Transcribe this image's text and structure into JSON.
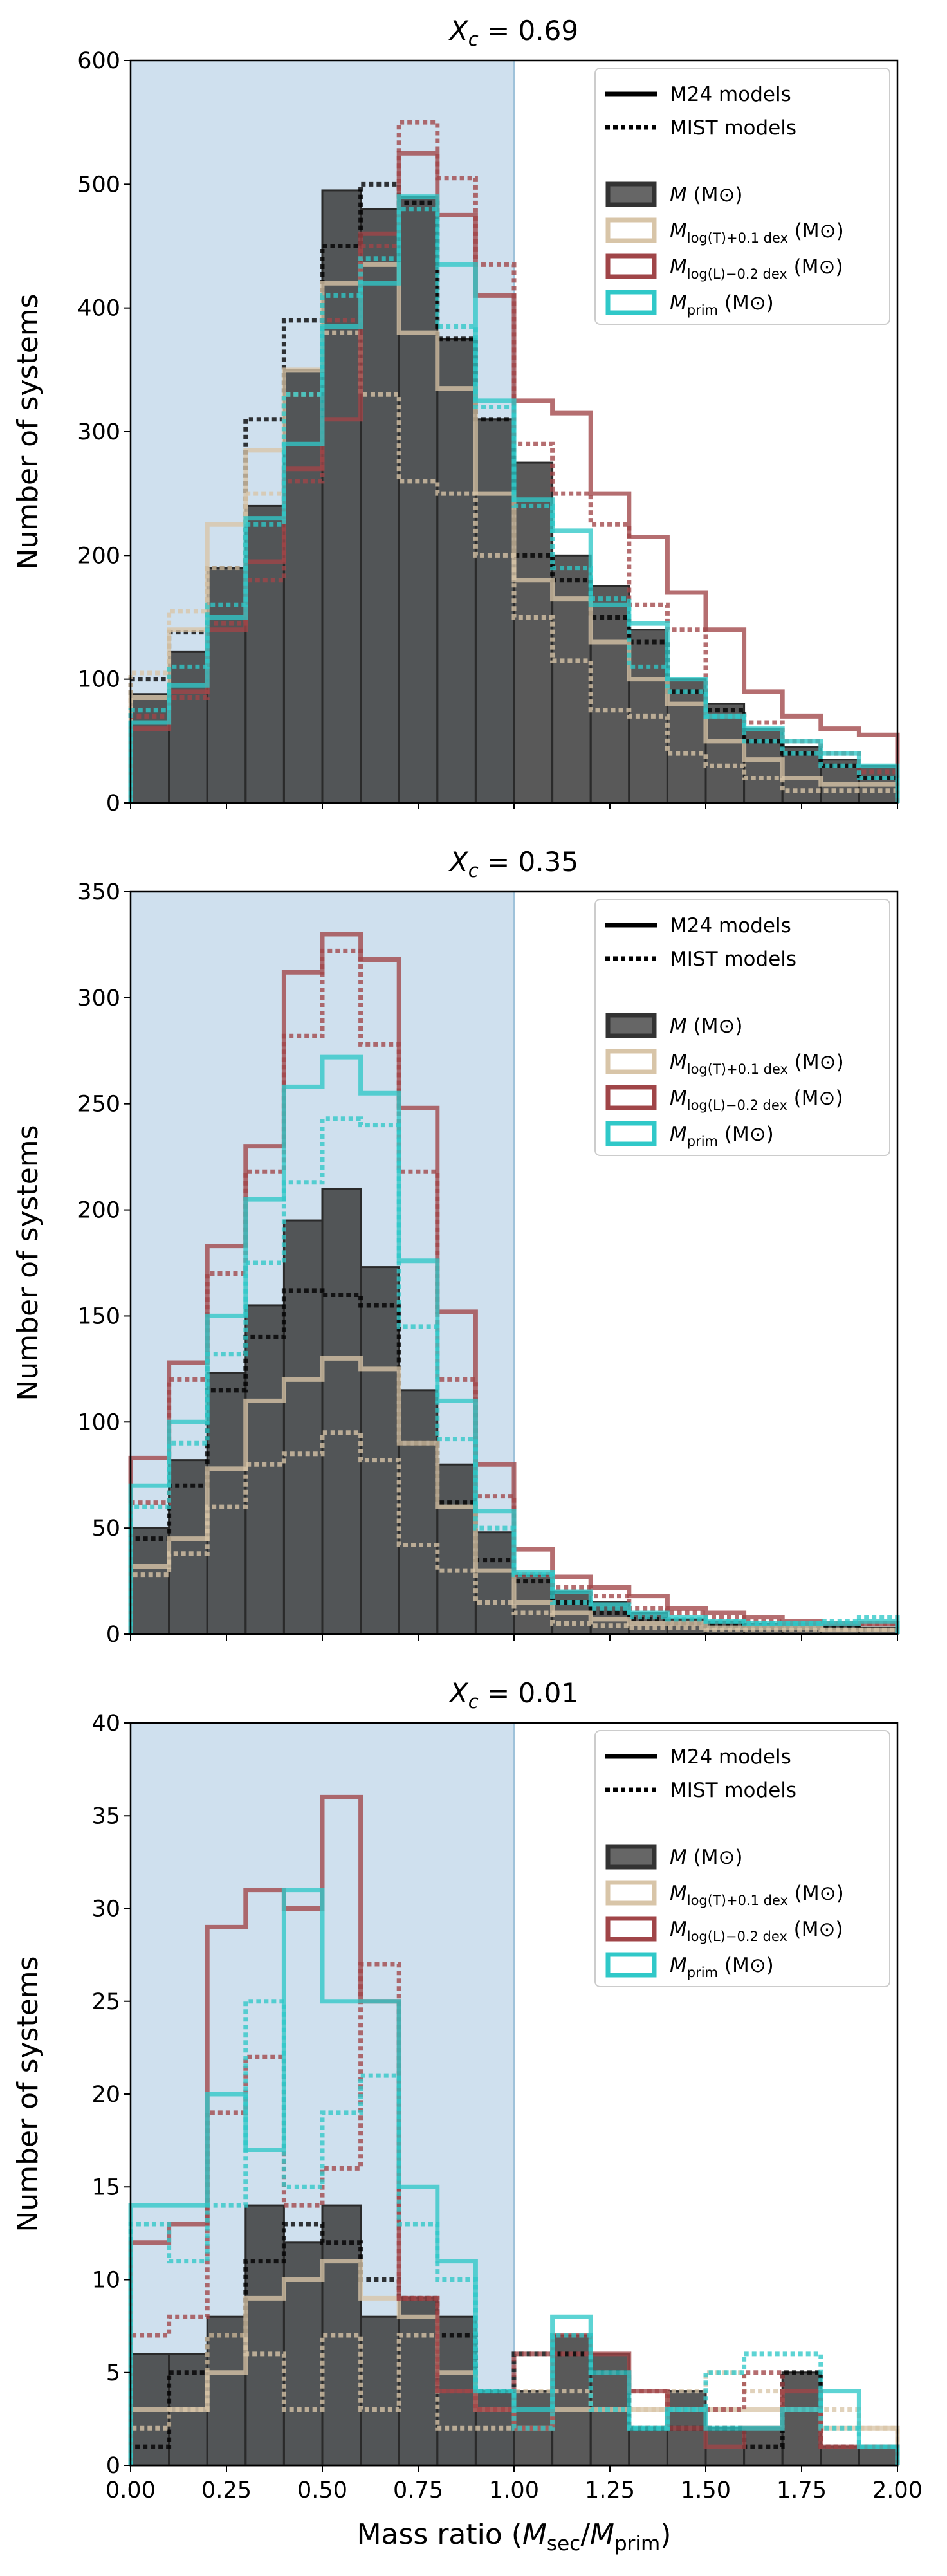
{
  "chart_data": [
    {
      "type": "histogram",
      "title_prefix": "X",
      "title_sub": "c",
      "title_value": " = 0.69",
      "ylabel": "Number of systems",
      "xlabel": "",
      "xlim": [
        0,
        2
      ],
      "ylim": [
        0,
        600
      ],
      "yticks": [
        "0",
        "100",
        "200",
        "300",
        "400",
        "500",
        "600"
      ],
      "xticks": [],
      "shaded_region": [
        0,
        1
      ],
      "bin_edges": [
        0,
        0.1,
        0.2,
        0.3,
        0.4,
        0.5,
        0.6,
        0.7,
        0.8,
        0.9,
        1.0,
        1.1,
        1.2,
        1.3,
        1.4,
        1.5,
        1.6,
        1.7,
        1.8,
        1.9,
        2.0
      ],
      "series": [
        {
          "name": "M24 M",
          "color": "#3a3a3a",
          "style": "filled",
          "values": [
            88,
            122,
            190,
            240,
            350,
            495,
            480,
            490,
            375,
            310,
            275,
            200,
            175,
            140,
            100,
            80,
            60,
            45,
            35,
            30
          ]
        },
        {
          "name": "MIST M",
          "color": "#000000",
          "style": "dotted",
          "values": [
            100,
            138,
            190,
            310,
            390,
            450,
            500,
            485,
            375,
            310,
            200,
            180,
            150,
            130,
            90,
            75,
            50,
            40,
            30,
            20
          ]
        },
        {
          "name": "M24 Mlog(T)",
          "color": "#d8c5a8",
          "style": "solid",
          "values": [
            85,
            140,
            225,
            285,
            350,
            420,
            435,
            380,
            335,
            250,
            180,
            165,
            130,
            100,
            80,
            50,
            35,
            20,
            15,
            15
          ]
        },
        {
          "name": "MIST Mlog(T)",
          "color": "#d8c5a8",
          "style": "dotted",
          "values": [
            105,
            155,
            190,
            250,
            330,
            380,
            330,
            260,
            250,
            200,
            150,
            115,
            75,
            70,
            40,
            30,
            20,
            10,
            10,
            10
          ]
        },
        {
          "name": "M24 Mlog(L)",
          "color": "#a04548",
          "style": "solid",
          "values": [
            60,
            90,
            140,
            195,
            270,
            310,
            460,
            525,
            475,
            410,
            325,
            315,
            250,
            215,
            170,
            140,
            90,
            70,
            60,
            55
          ]
        },
        {
          "name": "MIST Mlog(L)",
          "color": "#a04548",
          "style": "dotted",
          "values": [
            70,
            85,
            145,
            180,
            260,
            390,
            450,
            550,
            505,
            435,
            290,
            250,
            225,
            160,
            140,
            70,
            65,
            50,
            40,
            25
          ]
        },
        {
          "name": "M24 Mprim",
          "color": "#30c8c8",
          "style": "solid",
          "values": [
            65,
            95,
            150,
            230,
            290,
            385,
            420,
            490,
            435,
            325,
            245,
            220,
            160,
            145,
            100,
            70,
            60,
            50,
            40,
            30
          ]
        },
        {
          "name": "MIST Mprim",
          "color": "#30c8c8",
          "style": "dotted",
          "values": [
            75,
            110,
            160,
            225,
            330,
            410,
            440,
            480,
            385,
            320,
            240,
            190,
            165,
            110,
            90,
            70,
            50,
            40,
            30,
            20
          ]
        }
      ],
      "legend": {
        "position": "top-right",
        "line_items": [
          {
            "label": "M24 models",
            "style": "solid"
          },
          {
            "label": "MIST models",
            "style": "dotted"
          }
        ],
        "patch_items": [
          {
            "label": "M (M⊙)",
            "face": "#555555",
            "edge": "#333333"
          },
          {
            "label": "Mlog(T)+0.1 dex (M⊙)",
            "face": "#ffffff",
            "edge": "#d8c5a8"
          },
          {
            "label": "Mlog(L)−0.2 dex (M⊙)",
            "face": "#ffffff",
            "edge": "#a04548"
          },
          {
            "label": "Mprim (M⊙)",
            "face": "#ffffff",
            "edge": "#30c8c8"
          }
        ]
      }
    },
    {
      "type": "histogram",
      "title_prefix": "X",
      "title_sub": "c",
      "title_value": " = 0.35",
      "ylabel": "Number of systems",
      "xlabel": "",
      "xlim": [
        0,
        2
      ],
      "ylim": [
        0,
        350
      ],
      "yticks": [
        "0",
        "50",
        "100",
        "150",
        "200",
        "250",
        "300",
        "350"
      ],
      "xticks": [],
      "shaded_region": [
        0,
        1
      ],
      "bin_edges": [
        0,
        0.1,
        0.2,
        0.3,
        0.4,
        0.5,
        0.6,
        0.7,
        0.8,
        0.9,
        1.0,
        1.1,
        1.2,
        1.3,
        1.4,
        1.5,
        1.6,
        1.7,
        1.8,
        1.9,
        2.0
      ],
      "series": [
        {
          "name": "M24 M",
          "color": "#3a3a3a",
          "style": "filled",
          "values": [
            50,
            82,
            123,
            155,
            195,
            210,
            173,
            115,
            80,
            48,
            28,
            20,
            15,
            10,
            7,
            6,
            5,
            5,
            4,
            3
          ]
        },
        {
          "name": "MIST M",
          "color": "#000000",
          "style": "dotted",
          "values": [
            45,
            70,
            115,
            140,
            162,
            160,
            155,
            90,
            62,
            35,
            25,
            15,
            10,
            7,
            5,
            4,
            3,
            3,
            3,
            2
          ]
        },
        {
          "name": "M24 Mlog(T)",
          "color": "#d8c5a8",
          "style": "solid",
          "values": [
            32,
            45,
            78,
            110,
            120,
            130,
            125,
            90,
            60,
            30,
            15,
            10,
            7,
            5,
            5,
            3,
            3,
            3,
            2,
            2
          ]
        },
        {
          "name": "MIST Mlog(T)",
          "color": "#d8c5a8",
          "style": "dotted",
          "values": [
            28,
            38,
            60,
            80,
            85,
            95,
            82,
            42,
            30,
            15,
            10,
            5,
            4,
            3,
            3,
            2,
            2,
            2,
            2,
            2
          ]
        },
        {
          "name": "M24 Mlog(L)",
          "color": "#a04548",
          "style": "solid",
          "values": [
            83,
            128,
            183,
            230,
            312,
            330,
            318,
            248,
            152,
            80,
            40,
            27,
            22,
            18,
            12,
            10,
            8,
            6,
            5,
            5
          ]
        },
        {
          "name": "MIST Mlog(L)",
          "color": "#a04548",
          "style": "dotted",
          "values": [
            62,
            120,
            170,
            218,
            282,
            322,
            278,
            218,
            120,
            65,
            28,
            22,
            18,
            12,
            10,
            8,
            6,
            5,
            5,
            5
          ]
        },
        {
          "name": "M24 Mprim",
          "color": "#30c8c8",
          "style": "solid",
          "values": [
            70,
            100,
            150,
            205,
            258,
            272,
            255,
            176,
            110,
            58,
            29,
            20,
            14,
            10,
            8,
            6,
            5,
            5,
            5,
            6
          ]
        },
        {
          "name": "MIST Mprim",
          "color": "#30c8c8",
          "style": "dotted",
          "values": [
            60,
            90,
            132,
            175,
            213,
            243,
            240,
            145,
            92,
            50,
            28,
            15,
            12,
            8,
            7,
            6,
            5,
            5,
            6,
            8
          ]
        }
      ],
      "legend": {
        "position": "top-right",
        "line_items": [
          {
            "label": "M24 models",
            "style": "solid"
          },
          {
            "label": "MIST models",
            "style": "dotted"
          }
        ],
        "patch_items": [
          {
            "label": "M (M⊙)",
            "face": "#555555",
            "edge": "#333333"
          },
          {
            "label": "Mlog(T)+0.1 dex (M⊙)",
            "face": "#ffffff",
            "edge": "#d8c5a8"
          },
          {
            "label": "Mlog(L)−0.2 dex (M⊙)",
            "face": "#ffffff",
            "edge": "#a04548"
          },
          {
            "label": "Mprim (M⊙)",
            "face": "#ffffff",
            "edge": "#30c8c8"
          }
        ]
      }
    },
    {
      "type": "histogram",
      "title_prefix": "X",
      "title_sub": "c",
      "title_value": " = 0.01",
      "ylabel": "Number of systems",
      "xlabel": "Mass ratio (Msec/Mprim)",
      "xlim": [
        0,
        2
      ],
      "ylim": [
        0,
        40
      ],
      "yticks": [
        "0",
        "5",
        "10",
        "15",
        "20",
        "25",
        "30",
        "35",
        "40"
      ],
      "xticks": [
        "0.00",
        "0.25",
        "0.50",
        "0.75",
        "1.00",
        "1.25",
        "1.50",
        "1.75",
        "2.00"
      ],
      "shaded_region": [
        0,
        1
      ],
      "bin_edges": [
        0,
        0.1,
        0.2,
        0.3,
        0.4,
        0.5,
        0.6,
        0.7,
        0.8,
        0.9,
        1.0,
        1.1,
        1.2,
        1.3,
        1.4,
        1.5,
        1.6,
        1.7,
        1.8,
        1.9,
        2.0
      ],
      "series": [
        {
          "name": "M24 M",
          "color": "#3a3a3a",
          "style": "filled",
          "values": [
            6,
            6,
            8,
            14,
            12,
            14,
            8,
            9,
            8,
            4,
            4,
            7,
            6,
            2,
            4,
            2,
            2,
            5,
            1,
            1
          ]
        },
        {
          "name": "MIST M",
          "color": "#000000",
          "style": "dotted",
          "values": [
            1,
            5,
            7,
            11,
            13,
            12,
            10,
            9,
            7,
            4,
            6,
            6,
            5,
            2,
            2,
            2,
            1,
            5,
            1,
            1
          ]
        },
        {
          "name": "M24 Mlog(T)",
          "color": "#d8c5a8",
          "style": "solid",
          "values": [
            3,
            3,
            5,
            9,
            10,
            11,
            9,
            8,
            5,
            3,
            2,
            3,
            3,
            3,
            3,
            3,
            3,
            3,
            2,
            2
          ]
        },
        {
          "name": "MIST Mlog(T)",
          "color": "#d8c5a8",
          "style": "dotted",
          "values": [
            2,
            3,
            7,
            6,
            3,
            7,
            3,
            7,
            2,
            2,
            4,
            4,
            3,
            3,
            4,
            5,
            4,
            3,
            3,
            2
          ]
        },
        {
          "name": "M24 Mlog(L)",
          "color": "#a04548",
          "style": "solid",
          "values": [
            12,
            13,
            29,
            31,
            30,
            36,
            25,
            9,
            4,
            3,
            2,
            7,
            6,
            4,
            2,
            1,
            2,
            4,
            1,
            1
          ]
        },
        {
          "name": "MIST Mlog(L)",
          "color": "#a04548",
          "style": "dotted",
          "values": [
            7,
            8,
            19,
            22,
            14,
            16,
            27,
            9,
            4,
            3,
            6,
            6,
            5,
            4,
            3,
            3,
            5,
            3,
            1,
            1
          ]
        },
        {
          "name": "M24 Mprim",
          "color": "#30c8c8",
          "style": "solid",
          "values": [
            14,
            14,
            20,
            17,
            31,
            25,
            25,
            15,
            11,
            4,
            3,
            8,
            5,
            2,
            3,
            2,
            2,
            3,
            4,
            1
          ]
        },
        {
          "name": "MIST Mprim",
          "color": "#30c8c8",
          "style": "dotted",
          "values": [
            13,
            11,
            14,
            25,
            15,
            19,
            21,
            13,
            10,
            4,
            2,
            7,
            3,
            2,
            3,
            5,
            6,
            6,
            2,
            1
          ]
        }
      ],
      "legend": {
        "position": "top-right",
        "line_items": [
          {
            "label": "M24 models",
            "style": "solid"
          },
          {
            "label": "MIST models",
            "style": "dotted"
          }
        ],
        "patch_items": [
          {
            "label": "M (M⊙)",
            "face": "#555555",
            "edge": "#333333"
          },
          {
            "label": "Mlog(T)+0.1 dex (M⊙)",
            "face": "#ffffff",
            "edge": "#d8c5a8"
          },
          {
            "label": "Mlog(L)−0.2 dex (M⊙)",
            "face": "#ffffff",
            "edge": "#a04548"
          },
          {
            "label": "Mprim (M⊙)",
            "face": "#ffffff",
            "edge": "#30c8c8"
          }
        ]
      }
    }
  ],
  "colors": {
    "shade": "#cfe0ee",
    "shade_edge": "#9fc2da"
  }
}
